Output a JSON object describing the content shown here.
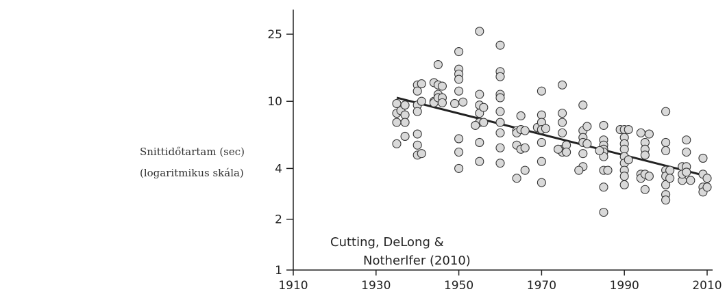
{
  "chart_data": {
    "type": "scatter",
    "title": "",
    "xlabel": "",
    "ylabel_lines": [
      "Snittidőtartam (sec)",
      "(logaritmikus skála)"
    ],
    "y_scale": "log",
    "xlim": [
      1910,
      2010
    ],
    "ylim": [
      1,
      30
    ],
    "x_ticks": [
      1910,
      1930,
      1950,
      1970,
      1990,
      2010
    ],
    "y_ticks": [
      1,
      2,
      4,
      10,
      25
    ],
    "annotation_lines": [
      "Cutting, DeLong &",
      "Notherlfer (2010)"
    ],
    "trend_line": {
      "x": [
        1935,
        2010
      ],
      "y": [
        10.5,
        3.6
      ]
    },
    "points": [
      [
        1935,
        9.7
      ],
      [
        1935,
        8.5
      ],
      [
        1935,
        7.5
      ],
      [
        1935,
        5.6
      ],
      [
        1936,
        8.8
      ],
      [
        1937,
        9.5
      ],
      [
        1937,
        8.3
      ],
      [
        1937,
        7.5
      ],
      [
        1937,
        6.2
      ],
      [
        1940,
        12.5
      ],
      [
        1940,
        11.5
      ],
      [
        1940,
        9.5
      ],
      [
        1940,
        8.7
      ],
      [
        1940,
        6.4
      ],
      [
        1940,
        5.5
      ],
      [
        1940,
        4.8
      ],
      [
        1941,
        12.7
      ],
      [
        1941,
        10
      ],
      [
        1941,
        4.9
      ],
      [
        1944,
        12.9
      ],
      [
        1944,
        10
      ],
      [
        1944,
        9.8
      ],
      [
        1945,
        16.5
      ],
      [
        1945,
        12.5
      ],
      [
        1945,
        11
      ],
      [
        1945,
        10.5
      ],
      [
        1946,
        12.3
      ],
      [
        1946,
        10.5
      ],
      [
        1946,
        9.8
      ],
      [
        1949,
        9.7
      ],
      [
        1950,
        19.7
      ],
      [
        1950,
        15.5
      ],
      [
        1950,
        14.5
      ],
      [
        1950,
        13.5
      ],
      [
        1950,
        11.5
      ],
      [
        1950,
        6
      ],
      [
        1950,
        5
      ],
      [
        1950,
        4
      ],
      [
        1951,
        9.9
      ],
      [
        1955,
        26
      ],
      [
        1955,
        11
      ],
      [
        1955,
        9.5
      ],
      [
        1955,
        8.5
      ],
      [
        1955,
        7.5
      ],
      [
        1955,
        5.7
      ],
      [
        1955,
        4.4
      ],
      [
        1954,
        7.2
      ],
      [
        1956,
        9.2
      ],
      [
        1956,
        7.5
      ],
      [
        1960,
        21.5
      ],
      [
        1960,
        15
      ],
      [
        1960,
        14
      ],
      [
        1960,
        11
      ],
      [
        1960,
        10.5
      ],
      [
        1960,
        8.7
      ],
      [
        1960,
        7.5
      ],
      [
        1960,
        6.5
      ],
      [
        1960,
        5.3
      ],
      [
        1960,
        4.3
      ],
      [
        1964,
        6.7
      ],
      [
        1964,
        6.5
      ],
      [
        1964,
        5.5
      ],
      [
        1964,
        3.5
      ],
      [
        1965,
        8.2
      ],
      [
        1965,
        6.8
      ],
      [
        1965,
        5.2
      ],
      [
        1966,
        6.7
      ],
      [
        1966,
        5.3
      ],
      [
        1966,
        3.9
      ],
      [
        1969,
        7
      ],
      [
        1970,
        8.3
      ],
      [
        1970,
        7.5
      ],
      [
        1970,
        6.8
      ],
      [
        1970,
        5.7
      ],
      [
        1970,
        4.4
      ],
      [
        1970,
        3.3
      ],
      [
        1970,
        11.5
      ],
      [
        1971,
        6.9
      ],
      [
        1975,
        12.5
      ],
      [
        1975,
        8.5
      ],
      [
        1975,
        7.5
      ],
      [
        1975,
        6.5
      ],
      [
        1975,
        5.2
      ],
      [
        1975,
        5
      ],
      [
        1974,
        5.2
      ],
      [
        1976,
        5.5
      ],
      [
        1976,
        5
      ],
      [
        1980,
        9.5
      ],
      [
        1980,
        6.7
      ],
      [
        1980,
        6.1
      ],
      [
        1980,
        5.7
      ],
      [
        1980,
        4.9
      ],
      [
        1980,
        4.1
      ],
      [
        1979,
        3.9
      ],
      [
        1981,
        7.1
      ],
      [
        1981,
        5.6
      ],
      [
        1985,
        7.2
      ],
      [
        1985,
        5.9
      ],
      [
        1985,
        5.5
      ],
      [
        1985,
        5.2
      ],
      [
        1985,
        5
      ],
      [
        1985,
        4.7
      ],
      [
        1985,
        3.9
      ],
      [
        1985,
        3.1
      ],
      [
        1985,
        2.2
      ],
      [
        1984,
        5.1
      ],
      [
        1986,
        3.9
      ],
      [
        1989,
        6.8
      ],
      [
        1990,
        6.8
      ],
      [
        1990,
        6.1
      ],
      [
        1990,
        5.6
      ],
      [
        1990,
        5.2
      ],
      [
        1990,
        4.7
      ],
      [
        1990,
        4.3
      ],
      [
        1990,
        3.9
      ],
      [
        1990,
        3.6
      ],
      [
        1990,
        3.2
      ],
      [
        1991,
        6.8
      ],
      [
        1991,
        4.5
      ],
      [
        1994,
        6.5
      ],
      [
        1994,
        3.7
      ],
      [
        1994,
        3.5
      ],
      [
        1995,
        5.7
      ],
      [
        1995,
        5.2
      ],
      [
        1995,
        4.8
      ],
      [
        1995,
        3.7
      ],
      [
        1995,
        3
      ],
      [
        1996,
        6.4
      ],
      [
        1996,
        3.6
      ],
      [
        2000,
        8.7
      ],
      [
        2000,
        5.7
      ],
      [
        2000,
        5.1
      ],
      [
        2000,
        3.9
      ],
      [
        2000,
        3.6
      ],
      [
        2000,
        3.2
      ],
      [
        2000,
        2.8
      ],
      [
        2000,
        2.6
      ],
      [
        2001,
        3.9
      ],
      [
        2001,
        3.5
      ],
      [
        2004,
        4.1
      ],
      [
        2004,
        3.4
      ],
      [
        2004,
        3.7
      ],
      [
        2005,
        5.9
      ],
      [
        2005,
        5
      ],
      [
        2005,
        4.1
      ],
      [
        2005,
        3.8
      ],
      [
        2006,
        3.4
      ],
      [
        2009,
        4.6
      ],
      [
        2009,
        3.7
      ],
      [
        2009,
        3.1
      ],
      [
        2009,
        2.9
      ],
      [
        2010,
        3.5
      ],
      [
        2010,
        3.1
      ]
    ]
  }
}
